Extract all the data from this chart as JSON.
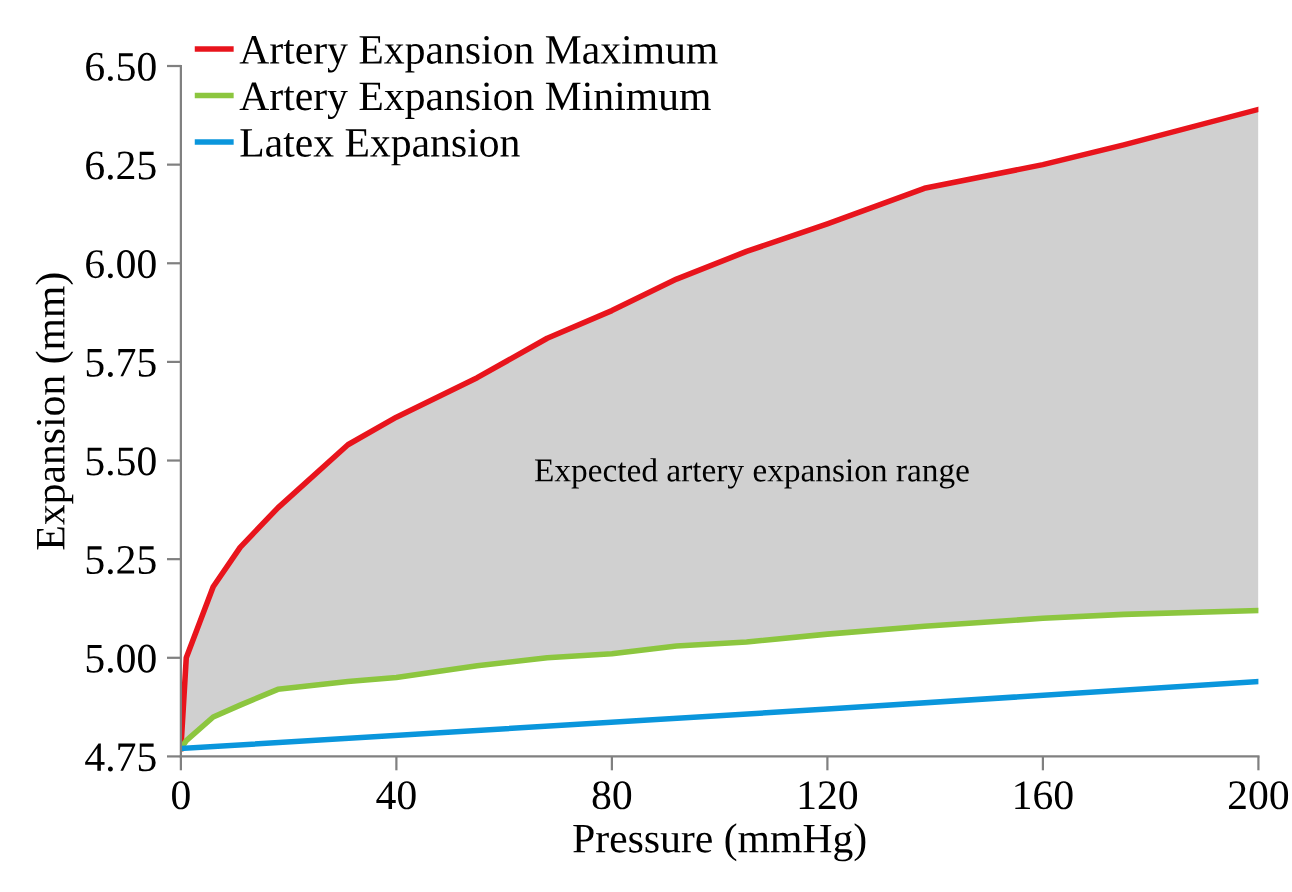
{
  "chart_data": {
    "type": "line",
    "xlabel": "Pressure (mmHg)",
    "ylabel": "Expansion (mm)",
    "x": [
      0,
      1,
      6,
      11,
      18,
      31,
      40,
      55,
      68,
      80,
      92,
      105,
      120,
      138,
      160,
      175,
      200
    ],
    "series": [
      {
        "type": "area",
        "name": "Artery Expansion Maximum",
        "color": "#e8141c",
        "values": [
          4.77,
          5.0,
          5.18,
          5.28,
          5.38,
          5.54,
          5.61,
          5.71,
          5.81,
          5.88,
          5.96,
          6.03,
          6.1,
          6.19,
          6.25,
          6.3,
          6.39
        ]
      },
      {
        "name": "Artery Expansion Minimum",
        "color": "#8cc63f",
        "values": [
          4.77,
          4.79,
          4.85,
          4.88,
          4.92,
          4.94,
          4.95,
          4.98,
          5.0,
          5.01,
          5.03,
          5.04,
          5.06,
          5.08,
          5.1,
          5.11,
          5.12
        ]
      },
      {
        "name": "Latex Expansion",
        "color": "#0a96dc",
        "x": [
          0,
          120,
          200
        ],
        "values": [
          4.77,
          4.87,
          4.94
        ]
      }
    ],
    "xlim": [
      0,
      200
    ],
    "xticks": [
      0,
      40,
      80,
      120,
      160,
      200
    ],
    "ylim": [
      4.75,
      6.5
    ],
    "yticks": [
      {
        "value": 4.75,
        "label": "4.75"
      },
      {
        "value": 5.0,
        "label": "5.00"
      },
      {
        "value": 5.25,
        "label": "5.25"
      },
      {
        "value": 5.5,
        "label": "5.50"
      },
      {
        "value": 5.75,
        "label": "5.75"
      },
      {
        "value": 6.0,
        "label": "6.00"
      },
      {
        "value": 6.25,
        "label": "6.25"
      },
      {
        "value": 6.5,
        "label": "6.50"
      }
    ],
    "grid": false,
    "legend": "top left",
    "marker": "none",
    "line_style": "solid",
    "annotations": [
      "Expected artery expansion range"
    ]
  }
}
